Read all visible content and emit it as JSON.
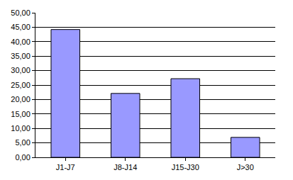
{
  "chart_data": {
    "type": "bar",
    "categories": [
      "J1-J7",
      "J8-J14",
      "J15-J30",
      "J>30"
    ],
    "values": [
      44.2,
      22.1,
      27.2,
      6.9
    ],
    "color": "#9999ff",
    "ylim": [
      0,
      50
    ],
    "yticks": [
      {
        "value": 0,
        "label": "0,00"
      },
      {
        "value": 5,
        "label": "5,00"
      },
      {
        "value": 10,
        "label": "10,00"
      },
      {
        "value": 15,
        "label": "15,00"
      },
      {
        "value": 20,
        "label": "20,00"
      },
      {
        "value": 25,
        "label": "25,00"
      },
      {
        "value": 30,
        "label": "30,00"
      },
      {
        "value": 35,
        "label": "35,00"
      },
      {
        "value": 40,
        "label": "40,00"
      },
      {
        "value": 45,
        "label": "45,00"
      },
      {
        "value": 50,
        "label": "50,00"
      }
    ],
    "grid": true
  }
}
